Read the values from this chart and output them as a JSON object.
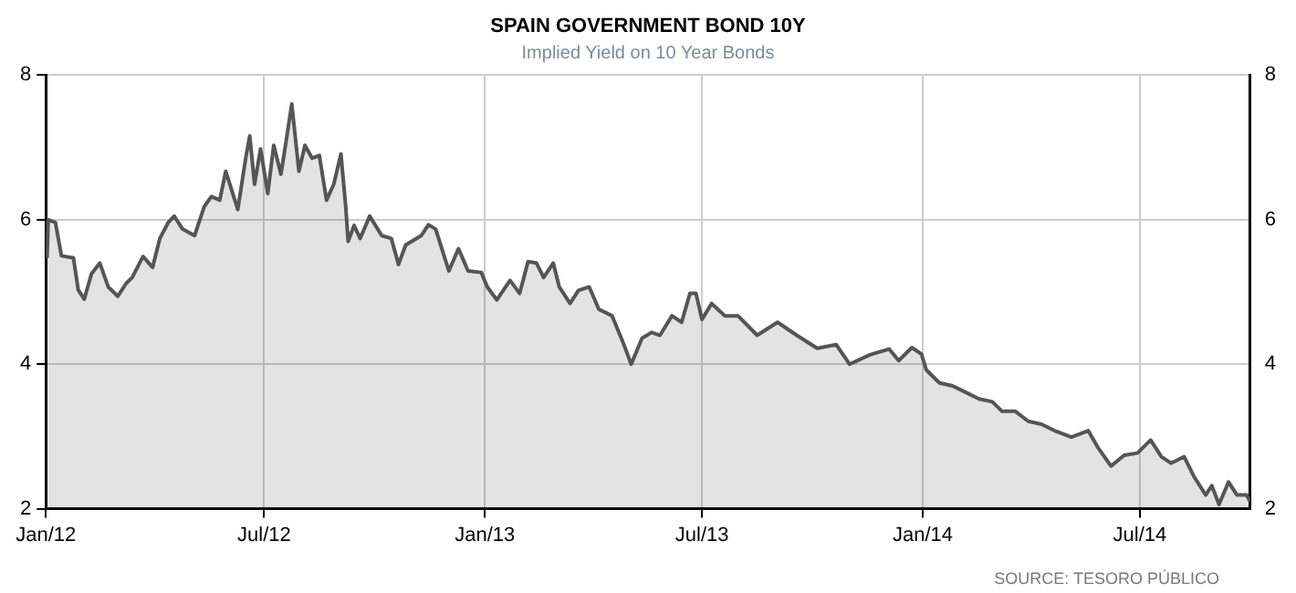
{
  "chart_data": {
    "type": "area",
    "title": "SPAIN GOVERNMENT BOND 10Y",
    "subtitle": "Implied Yield on 10 Year Bonds",
    "annotations": [
      "SOURCE: TESORO PÚBLICO"
    ],
    "x": [
      "2012-01-02",
      "2012-01-03",
      "2012-01-09",
      "2012-01-14",
      "2012-01-24",
      "2012-01-28",
      "2012-02-02",
      "2012-02-08",
      "2012-02-15",
      "2012-02-22",
      "2012-03-01",
      "2012-03-08",
      "2012-03-13",
      "2012-03-22",
      "2012-03-30",
      "2012-04-05",
      "2012-04-12",
      "2012-04-17",
      "2012-04-24",
      "2012-05-04",
      "2012-05-12",
      "2012-05-18",
      "2012-05-25",
      "2012-05-30",
      "2012-06-09",
      "2012-06-16",
      "2012-06-19",
      "2012-06-23",
      "2012-06-28",
      "2012-07-04",
      "2012-07-09",
      "2012-07-15",
      "2012-07-20",
      "2012-07-24",
      "2012-07-30",
      "2012-08-04",
      "2012-08-10",
      "2012-08-16",
      "2012-08-22",
      "2012-08-28",
      "2012-09-03",
      "2012-09-07",
      "2012-09-09",
      "2012-09-14",
      "2012-09-19",
      "2012-09-27",
      "2012-10-07",
      "2012-10-15",
      "2012-10-21",
      "2012-10-27",
      "2012-11-09",
      "2012-11-15",
      "2012-11-21",
      "2012-12-02",
      "2012-12-10",
      "2012-12-18",
      "2012-12-29",
      "2013-01-03",
      "2013-01-11",
      "2013-01-22",
      "2013-01-30",
      "2013-02-06",
      "2013-02-13",
      "2013-02-19",
      "2013-02-27",
      "2013-03-04",
      "2013-03-13",
      "2013-03-20",
      "2013-03-29",
      "2013-04-06",
      "2013-04-17",
      "2013-04-26",
      "2013-05-03",
      "2013-05-12",
      "2013-05-20",
      "2013-05-27",
      "2013-06-06",
      "2013-06-14",
      "2013-06-21",
      "2013-06-26",
      "2013-07-01",
      "2013-07-09",
      "2013-07-20",
      "2013-07-31",
      "2013-08-16",
      "2013-09-02",
      "2013-09-18",
      "2013-10-05",
      "2013-10-21",
      "2013-11-01",
      "2013-11-18",
      "2013-12-04",
      "2013-12-12",
      "2013-12-23",
      "2013-12-31",
      "2014-01-04",
      "2014-01-15",
      "2014-01-26",
      "2014-02-06",
      "2014-02-17",
      "2014-02-28",
      "2014-03-08",
      "2014-03-19",
      "2014-03-30",
      "2014-04-10",
      "2014-04-21",
      "2014-05-05",
      "2014-05-19",
      "2014-05-27",
      "2014-06-07",
      "2014-06-18",
      "2014-06-29",
      "2014-07-10",
      "2014-07-19",
      "2014-07-27",
      "2014-08-07",
      "2014-08-15",
      "2014-08-25",
      "2014-08-30",
      "2014-09-05",
      "2014-09-13",
      "2014-09-20",
      "2014-09-28",
      "2014-10-01"
    ],
    "series": [
      {
        "color": "#555555",
        "values": [
          5.47,
          6.0,
          5.96,
          5.5,
          5.47,
          5.03,
          4.9,
          5.25,
          5.4,
          5.07,
          4.94,
          5.12,
          5.2,
          5.49,
          5.34,
          5.74,
          5.96,
          6.05,
          5.87,
          5.78,
          6.18,
          6.32,
          6.27,
          6.67,
          6.14,
          6.89,
          7.16,
          6.49,
          6.98,
          6.36,
          7.03,
          6.63,
          7.16,
          7.6,
          6.67,
          7.03,
          6.85,
          6.89,
          6.27,
          6.49,
          6.91,
          6.18,
          5.7,
          5.92,
          5.74,
          6.05,
          5.78,
          5.74,
          5.38,
          5.65,
          5.78,
          5.93,
          5.87,
          5.29,
          5.6,
          5.29,
          5.27,
          5.07,
          4.89,
          5.16,
          4.98,
          5.42,
          5.4,
          5.2,
          5.4,
          5.07,
          4.84,
          5.02,
          5.07,
          4.76,
          4.67,
          4.31,
          4.0,
          4.36,
          4.44,
          4.4,
          4.67,
          4.58,
          4.98,
          4.98,
          4.62,
          4.84,
          4.67,
          4.67,
          4.4,
          4.58,
          4.4,
          4.22,
          4.27,
          4.0,
          4.13,
          4.21,
          4.05,
          4.23,
          4.14,
          3.92,
          3.74,
          3.7,
          3.61,
          3.52,
          3.48,
          3.35,
          3.35,
          3.21,
          3.17,
          3.08,
          2.99,
          3.08,
          2.85,
          2.59,
          2.74,
          2.77,
          2.95,
          2.72,
          2.63,
          2.72,
          2.45,
          2.19,
          2.32,
          2.06,
          2.37,
          2.19,
          2.19,
          2.1
        ]
      }
    ],
    "xlim": [
      "2012-01-01",
      "2014-10-01"
    ],
    "xticks": [
      {
        "value": "2012-01-01",
        "label": "Jan/12"
      },
      {
        "value": "2012-07-01",
        "label": "Jul/12"
      },
      {
        "value": "2013-01-01",
        "label": "Jan/13"
      },
      {
        "value": "2013-07-01",
        "label": "Jul/13"
      },
      {
        "value": "2014-01-01",
        "label": "Jan/14"
      },
      {
        "value": "2014-07-01",
        "label": "Jul/14"
      }
    ],
    "ylim": [
      2,
      8
    ],
    "yticks": [
      2,
      4,
      6,
      8
    ],
    "y2lim": [
      2,
      8
    ],
    "y2ticks": [
      2,
      4,
      6,
      8
    ],
    "grid": true,
    "legend": false
  }
}
